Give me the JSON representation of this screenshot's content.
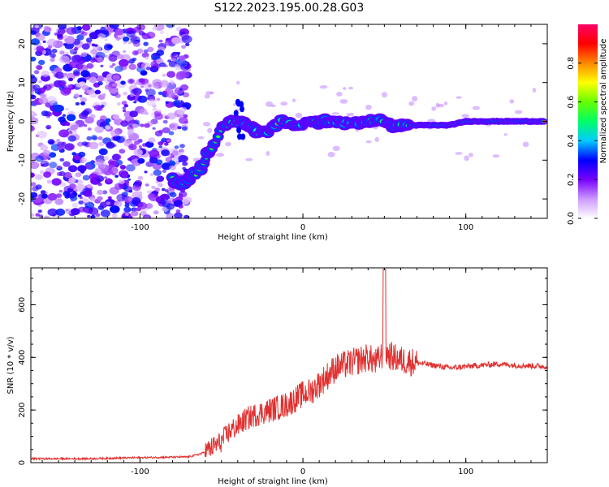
{
  "title": "S122.2023.195.00.28.G03",
  "chart_data": [
    {
      "type": "heatmap",
      "xlabel": "Height of straight line (km)",
      "ylabel": "Frequency (Hz)",
      "xlim": [
        -167,
        150
      ],
      "ylim": [
        -25,
        25
      ],
      "xticks": [
        -100,
        0,
        100
      ],
      "xtick_labels": [
        "-100",
        "0",
        "100"
      ],
      "yticks": [
        -20,
        -10,
        0,
        10,
        20
      ],
      "ytick_labels": [
        "-20",
        "-10",
        "0",
        "10",
        "20"
      ],
      "colorbar": {
        "label": "Normalized spectral amplitude",
        "range": [
          0,
          1
        ],
        "ticks": [
          0.0,
          0.2,
          0.4,
          0.6,
          0.8
        ],
        "tick_labels": [
          "0.0",
          "0.2",
          "0.4",
          "0.6",
          "0.8"
        ],
        "colors": [
          "#ffffff",
          "#cc99ff",
          "#7700ff",
          "#0000ff",
          "#00ccff",
          "#00ff66",
          "#66ff00",
          "#ffff00",
          "#ff8800",
          "#ff0000",
          "#ff0066"
        ]
      },
      "ridge": {
        "height_km": [
          -80,
          -75,
          -70,
          -65,
          -60,
          -55,
          -50,
          -45,
          -40,
          -35,
          -30,
          -25,
          -20,
          -15,
          -10,
          -5,
          0,
          5,
          10,
          15,
          20,
          25,
          30,
          35,
          40,
          45,
          50,
          55,
          60,
          65,
          70,
          80,
          90,
          100,
          110,
          120,
          130,
          140,
          148
        ],
        "frequency_hz": [
          -15,
          -16,
          -15,
          -13,
          -10,
          -6,
          -2,
          0,
          0,
          -1,
          -2,
          -3,
          -2,
          0,
          0,
          -1,
          -1,
          0,
          0,
          0,
          0,
          0,
          -1,
          0,
          0,
          0,
          0,
          -1,
          -1,
          -1,
          -1,
          -1,
          -1,
          0,
          0,
          0,
          0,
          0,
          0
        ]
      },
      "grid": false
    },
    {
      "type": "line",
      "xlabel": "Height of straight line (km)",
      "ylabel": "SNR (10 * v/v)",
      "xlim": [
        -167,
        150
      ],
      "ylim": [
        0,
        740
      ],
      "xticks": [
        -100,
        0,
        100
      ],
      "xtick_labels": [
        "-100",
        "0",
        "100"
      ],
      "yticks": [
        0,
        200,
        400,
        600
      ],
      "ytick_labels": [
        "0",
        "200",
        "400",
        "600"
      ],
      "color": "#e03030",
      "x": [
        -167,
        -150,
        -130,
        -110,
        -90,
        -70,
        -62,
        -55,
        -50,
        -45,
        -40,
        -35,
        -30,
        -25,
        -20,
        -15,
        -10,
        -5,
        0,
        5,
        10,
        15,
        20,
        25,
        30,
        35,
        40,
        45,
        50,
        55,
        60,
        65,
        70,
        80,
        90,
        100,
        110,
        120,
        130,
        140,
        150
      ],
      "y": [
        15,
        15,
        15,
        18,
        20,
        22,
        35,
        60,
        80,
        120,
        140,
        165,
        180,
        190,
        200,
        210,
        220,
        240,
        260,
        270,
        300,
        330,
        360,
        370,
        380,
        390,
        400,
        380,
        420,
        400,
        390,
        385,
        380,
        370,
        360,
        365,
        370,
        375,
        370,
        368,
        365
      ],
      "grid": false
    }
  ]
}
